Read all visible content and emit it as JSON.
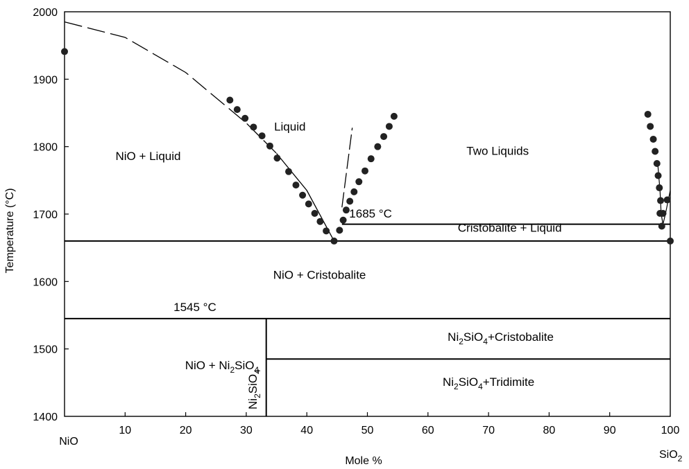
{
  "chart_data": {
    "type": "scatter",
    "title": "",
    "xlabel": "Mole %",
    "ylabel": "Temperature (°C)",
    "xlim": [
      0,
      100
    ],
    "ylim": [
      1400,
      2000
    ],
    "x_ticks": [
      "10",
      "20",
      "30",
      "40",
      "50",
      "60",
      "70",
      "80",
      "90",
      "100"
    ],
    "y_ticks": [
      "1400",
      "1500",
      "1600",
      "1700",
      "1800",
      "1900",
      "2000"
    ],
    "x_end_labels": {
      "left": "NiO",
      "right": "SiO",
      "right_sub": "2"
    },
    "grid": false,
    "colors": {
      "marker": "#222222",
      "line": "#000000"
    },
    "series": [
      {
        "points": [
          [
            0,
            1941
          ],
          [
            27.3,
            1869
          ],
          [
            28.5,
            1855
          ],
          [
            29.8,
            1842
          ],
          [
            31.2,
            1829
          ],
          [
            32.6,
            1816
          ],
          [
            33.9,
            1801
          ],
          [
            35.1,
            1783
          ],
          [
            37.0,
            1763
          ],
          [
            38.2,
            1743
          ],
          [
            39.3,
            1728
          ],
          [
            40.3,
            1715
          ],
          [
            41.3,
            1701
          ],
          [
            42.2,
            1689
          ],
          [
            43.2,
            1675
          ],
          [
            44.5,
            1660
          ],
          [
            45.4,
            1676
          ],
          [
            46.0,
            1691
          ],
          [
            46.5,
            1706
          ],
          [
            47.1,
            1719
          ],
          [
            47.8,
            1733
          ],
          [
            48.6,
            1748
          ],
          [
            49.6,
            1764
          ],
          [
            50.6,
            1782
          ],
          [
            51.7,
            1800
          ],
          [
            52.7,
            1815
          ],
          [
            53.6,
            1830
          ],
          [
            54.4,
            1845
          ],
          [
            96.3,
            1848
          ],
          [
            96.7,
            1830
          ],
          [
            97.2,
            1811
          ],
          [
            97.5,
            1793
          ],
          [
            97.8,
            1775
          ],
          [
            98.0,
            1757
          ],
          [
            98.2,
            1739
          ],
          [
            98.4,
            1720
          ],
          [
            98.3,
            1701
          ],
          [
            98.8,
            1701
          ],
          [
            98.6,
            1682
          ],
          [
            99.5,
            1721
          ],
          [
            100,
            1660
          ]
        ]
      }
    ],
    "curves": {
      "liquidus_nio_dashed": [
        [
          0,
          1985
        ],
        [
          10,
          1962
        ],
        [
          20,
          1910
        ],
        [
          30,
          1835
        ],
        [
          35,
          1790
        ]
      ],
      "liquidus_nio_solid": [
        [
          35,
          1790
        ],
        [
          40,
          1735
        ],
        [
          44.5,
          1660
        ]
      ],
      "immiscibility_dashed": [
        [
          45.8,
          1710
        ],
        [
          47.5,
          1828
        ]
      ],
      "sio2_side_line": [
        [
          97.9,
          1778
        ],
        [
          98.3,
          1735
        ],
        [
          98.5,
          1700
        ],
        [
          98.8,
          1685
        ],
        [
          99.2,
          1700
        ],
        [
          100,
          1735
        ]
      ]
    },
    "horizontal_lines": [
      {
        "y": 1685,
        "x0": 45.8,
        "x1": 100
      },
      {
        "y": 1660,
        "x0": 0,
        "x1": 100
      },
      {
        "y": 1545,
        "x0": 0,
        "x1": 100
      },
      {
        "y": 1485,
        "x0": 33.3,
        "x1": 100
      }
    ],
    "vertical_lines": [
      {
        "x": 33.3,
        "y0": 1400,
        "y1": 1545
      }
    ],
    "annotations": [
      {
        "text": "1685 °C",
        "x": 47,
        "y": 1695
      },
      {
        "text": "1545 °C",
        "x": 18,
        "y": 1556
      }
    ],
    "regions": [
      {
        "text": "NiO + Liquid",
        "x": 13.8,
        "y": 1780
      },
      {
        "text": "Liquid",
        "x": 37.2,
        "y": 1824
      },
      {
        "text": "Two Liquids",
        "x": 71.5,
        "y": 1788
      },
      {
        "text": "Cristobalite + Liquid",
        "x": 73.5,
        "y": 1674
      },
      {
        "text": "NiO + Cristobalite",
        "x": 42.1,
        "y": 1604
      },
      {
        "text": "NiO + Ni",
        "sub1": "2",
        "mid": "SiO",
        "sub2": "4",
        "x": 26,
        "y": 1470
      },
      {
        "text": "Ni",
        "sub1": "2",
        "mid": "SiO",
        "sub2": "4",
        "tail": "+Cristobalite",
        "x": 72,
        "y": 1512
      },
      {
        "text": "Ni",
        "sub1": "2",
        "mid": "SiO",
        "sub2": "4",
        "tail": "+Tridimite",
        "x": 70,
        "y": 1445
      },
      {
        "text": "Ni",
        "sub1": "2",
        "mid": "SiO",
        "sub2": "4",
        "x": 31.5,
        "y": 1440,
        "vertical": true
      }
    ]
  }
}
